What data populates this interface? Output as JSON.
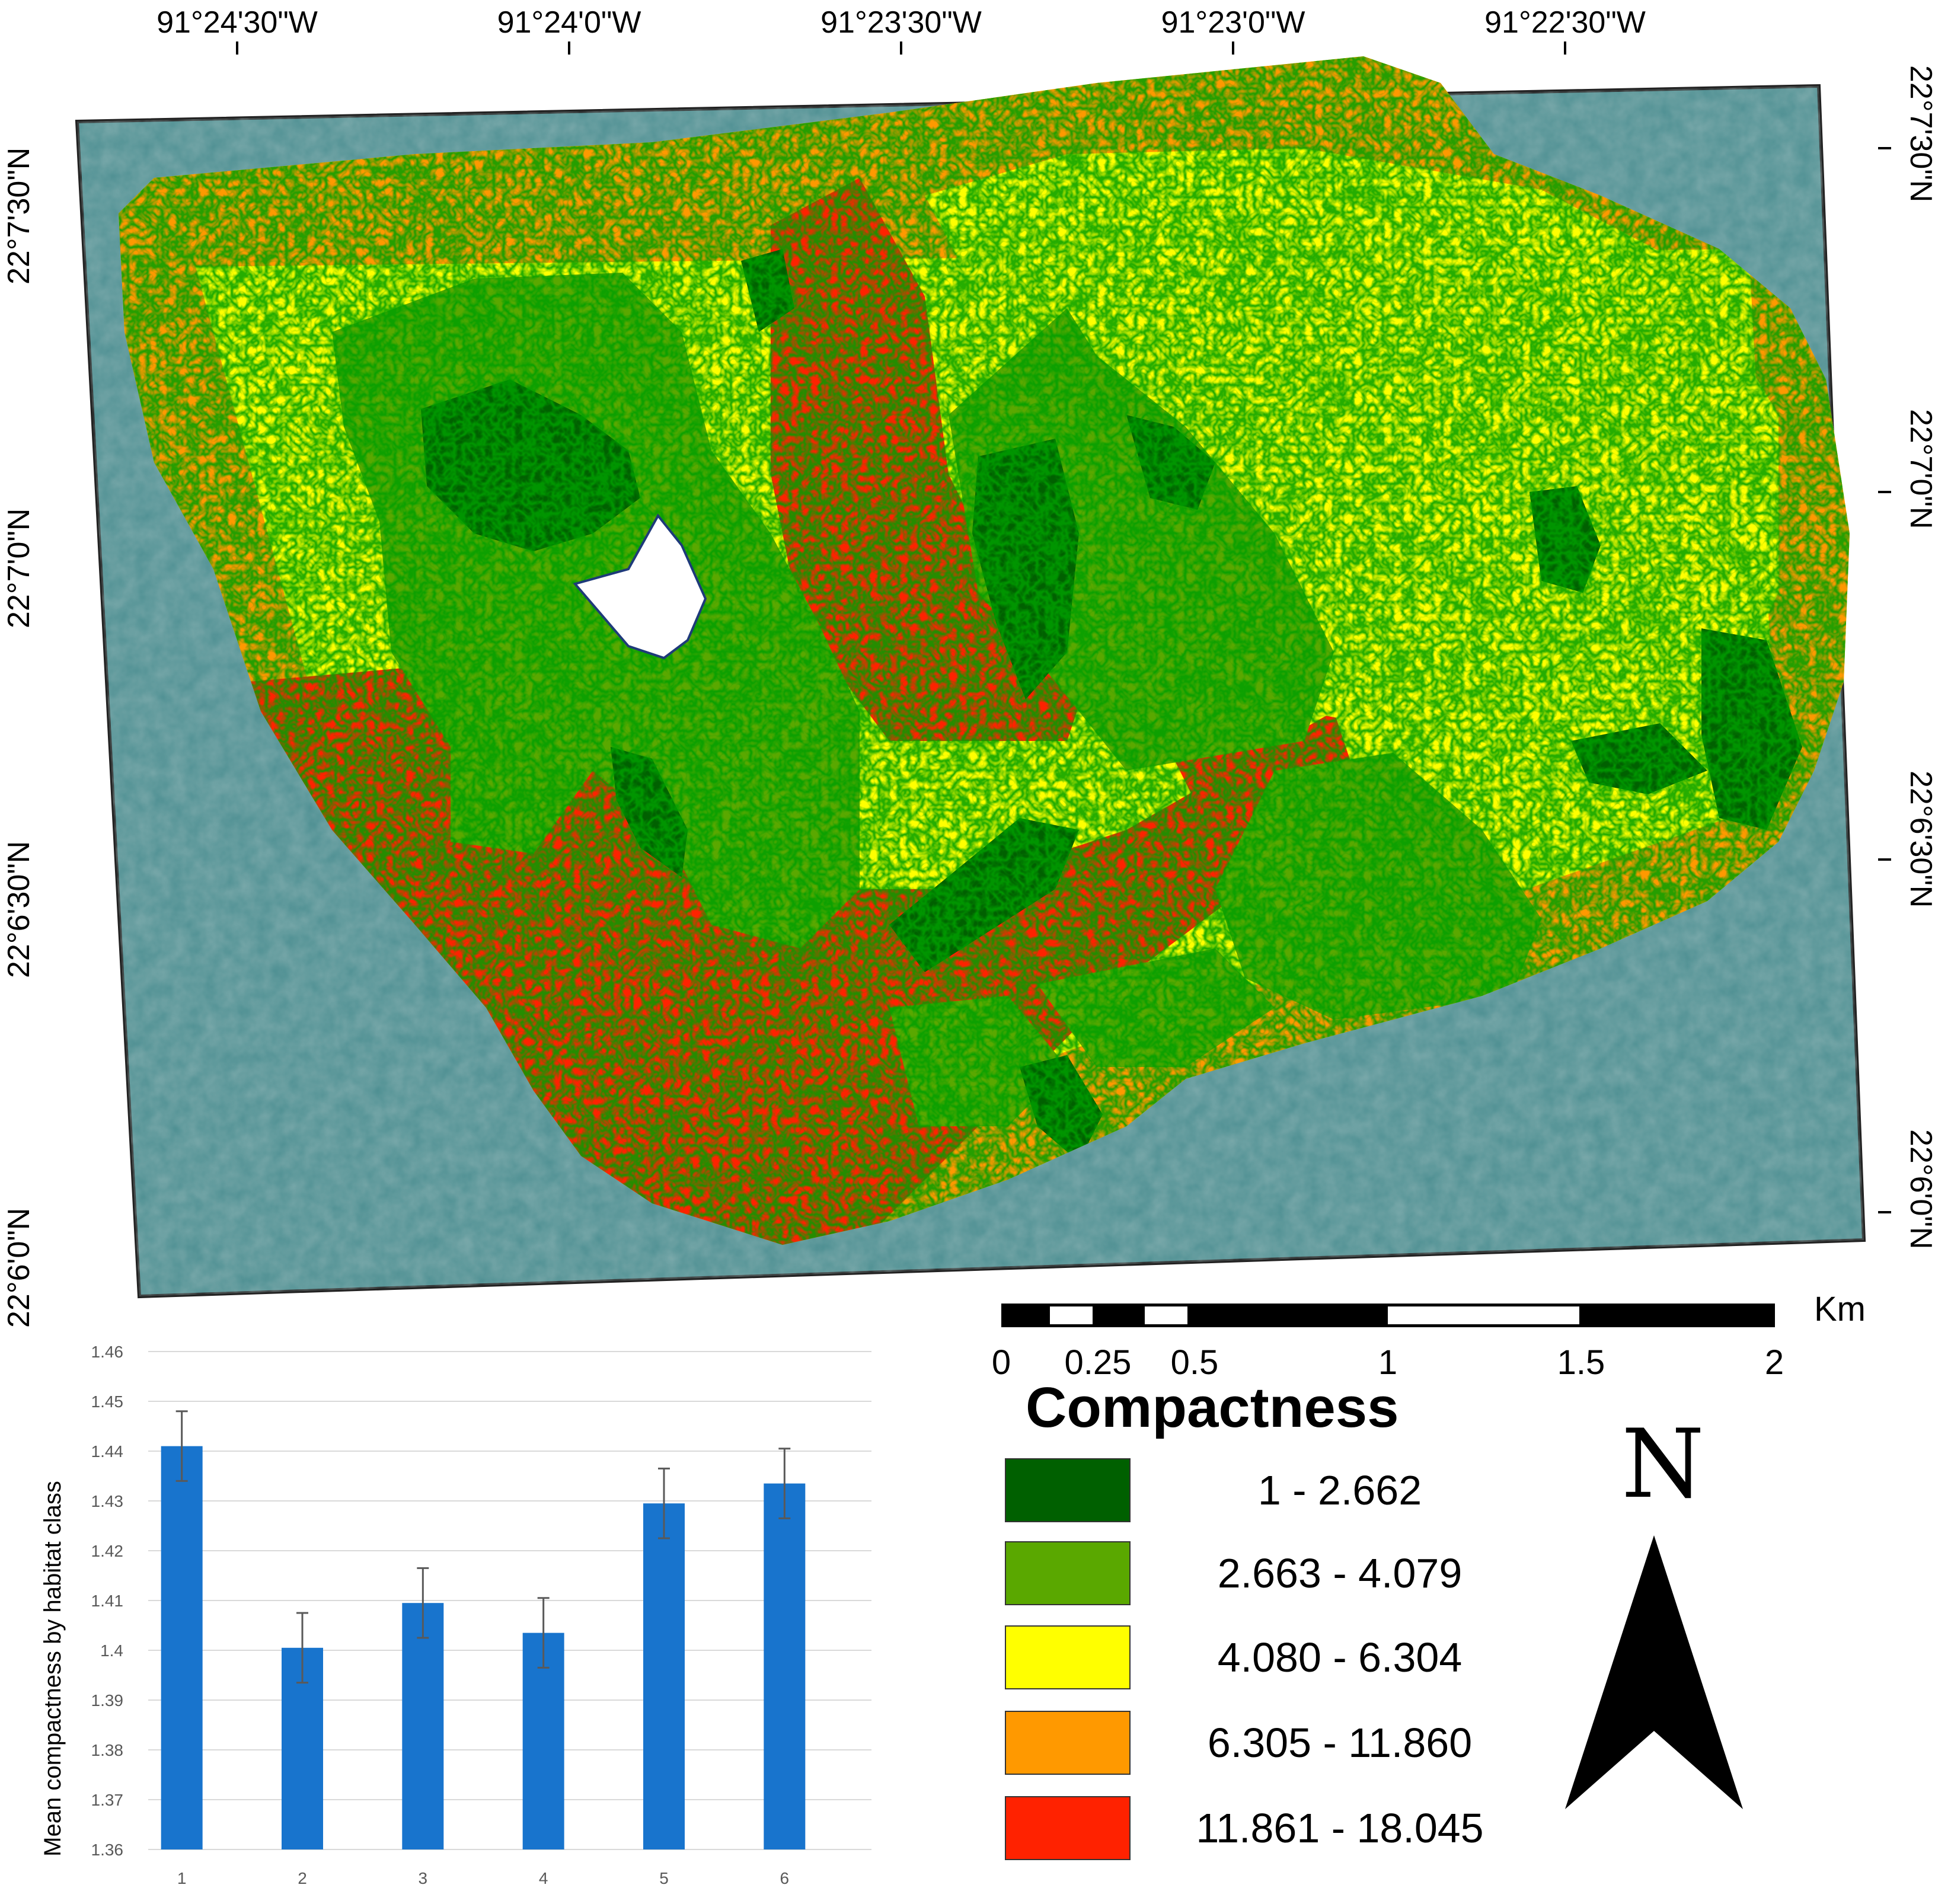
{
  "map": {
    "lon_ticks": [
      "91°24'30\"W",
      "91°24'0\"W",
      "91°23'30\"W",
      "91°23'0\"W",
      "91°22'30\"W"
    ],
    "lat_ticks_left": [
      "22°7'30\"N",
      "22°7'0\"N",
      "22°6'30\"N",
      "22°6'0\"N"
    ],
    "lat_ticks_right": [
      "22°7'30\"N",
      "22°7'0\"N",
      "22°6'30\"N",
      "22°6'0\"N"
    ],
    "scalebar": {
      "unit": "Km",
      "labels": [
        "0",
        "0.25",
        "0.5",
        "1",
        "1.5",
        "2"
      ]
    },
    "north": "N"
  },
  "legend": {
    "title": "Compactness",
    "items": [
      {
        "label": "1 - 2.662",
        "color": "#006000"
      },
      {
        "label": "2.663 - 4.079",
        "color": "#5aa800"
      },
      {
        "label": "4.080 - 6.304",
        "color": "#ffff00"
      },
      {
        "label": "6.305 - 11.860",
        "color": "#ff9900"
      },
      {
        "label": "11.861 - 18.045",
        "color": "#ff2200"
      }
    ]
  },
  "chart_data": {
    "type": "bar",
    "categories": [
      "1",
      "2",
      "3",
      "4",
      "5",
      "6"
    ],
    "values": [
      1.441,
      1.4005,
      1.4095,
      1.4035,
      1.4295,
      1.4335
    ],
    "errors": [
      0.007,
      0.007,
      0.007,
      0.007,
      0.007,
      0.007
    ],
    "ylabel": "Mean compactness by habitat class",
    "ylim": [
      1.36,
      1.46
    ],
    "yticks": [
      "1.46",
      "1.45",
      "1.44",
      "1.43",
      "1.42",
      "1.41",
      "1.4",
      "1.39",
      "1.38",
      "1.37",
      "1.36"
    ],
    "grid": true,
    "bar_color": "#1874cd"
  }
}
